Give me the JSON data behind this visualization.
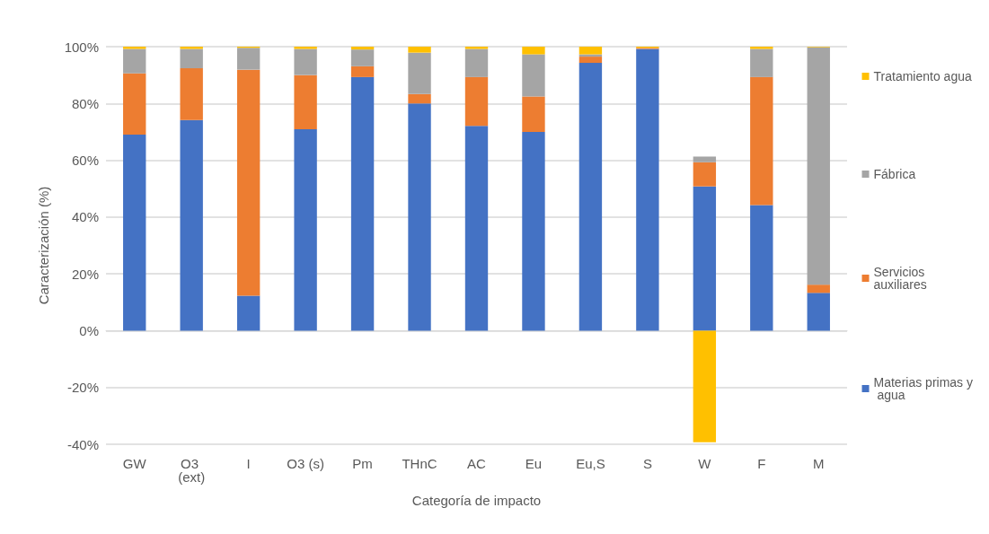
{
  "chart_data": {
    "type": "bar",
    "stacked": true,
    "xlabel": "Categoría de impacto",
    "ylabel": "Caracterización (%)",
    "categories": [
      "GW",
      "O3 (ext)",
      "I",
      "O3 (s)",
      "Pm",
      "THnC",
      "AC",
      "Eu",
      "Eu,S",
      "S",
      "W",
      "F",
      "M"
    ],
    "series": [
      {
        "name": "Materias primas y agua",
        "color": "#4472c4",
        "values": [
          69.0,
          74.2,
          12.3,
          70.9,
          89.3,
          80.0,
          72.1,
          70.0,
          94.3,
          99.2,
          50.8,
          44.2,
          13.3
        ]
      },
      {
        "name": "Servicios auxiliares",
        "color": "#ed7d31",
        "values": [
          21.6,
          18.2,
          79.6,
          19.1,
          3.8,
          3.3,
          17.2,
          12.5,
          2.2,
          0.4,
          8.5,
          45.1,
          2.9
        ]
      },
      {
        "name": "Fábrica",
        "color": "#a5a5a5",
        "values": [
          8.6,
          6.8,
          7.7,
          9.2,
          5.9,
          14.6,
          9.9,
          14.8,
          0.8,
          0,
          2.0,
          9.9,
          83.6
        ]
      },
      {
        "name": "Tratamiento agua",
        "color": "#ffc000",
        "values": [
          0.8,
          0.8,
          0.4,
          0.8,
          1.0,
          2.1,
          0.8,
          2.7,
          2.7,
          0.4,
          -39.3,
          0.8,
          0.2
        ]
      }
    ],
    "ylim": [
      -40,
      100
    ],
    "yticks": [
      {
        "value": -40,
        "label": "-40%"
      },
      {
        "value": -20,
        "label": "-20%"
      },
      {
        "value": 0,
        "label": "0%"
      },
      {
        "value": 20,
        "label": "20%"
      },
      {
        "value": 40,
        "label": "40%"
      },
      {
        "value": 60,
        "label": "60%"
      },
      {
        "value": 80,
        "label": "80%"
      },
      {
        "value": 100,
        "label": "100%"
      }
    ],
    "grid": "y",
    "legend": "right"
  }
}
